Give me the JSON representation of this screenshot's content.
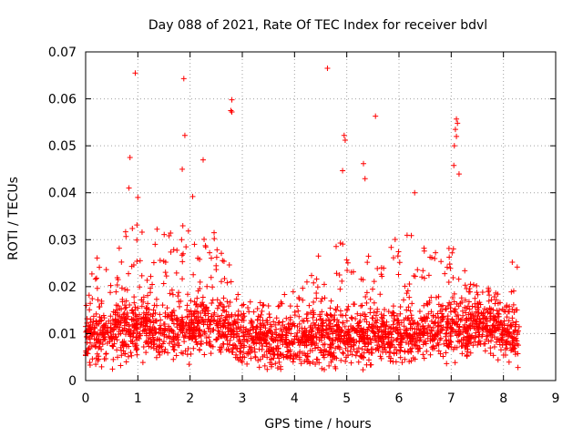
{
  "chart_data": {
    "type": "scatter",
    "title": "Day 088 of 2021, Rate Of TEC Index for receiver bdvl",
    "xlabel": "GPS time / hours",
    "ylabel": "ROTI / TECUs",
    "xlim": [
      0,
      9
    ],
    "ylim": [
      0,
      0.07
    ],
    "grid": true,
    "marker": "plus",
    "color": "#ff0000",
    "x_ticks": [
      0,
      1,
      2,
      3,
      4,
      5,
      6,
      7,
      8,
      9
    ],
    "x_tick_labels": [
      "0",
      "1",
      "2",
      "3",
      "4",
      "5",
      "6",
      "7",
      "8",
      "9"
    ],
    "y_ticks": [
      0,
      0.01,
      0.02,
      0.03,
      0.04,
      0.05,
      0.06,
      0.07
    ],
    "y_tick_labels": [
      "0",
      "0.01",
      "0.02",
      "0.03",
      "0.04",
      "0.05",
      "0.06",
      "0.07"
    ],
    "series": [
      {
        "name": "ROTI",
        "time_range_hours": [
          0,
          8.3
        ],
        "outliers": [
          {
            "x": 0.95,
            "y": 0.0655
          },
          {
            "x": 1.88,
            "y": 0.0643
          },
          {
            "x": 1.9,
            "y": 0.0522
          },
          {
            "x": 2.8,
            "y": 0.0598
          },
          {
            "x": 2.78,
            "y": 0.0575
          },
          {
            "x": 2.8,
            "y": 0.0572
          },
          {
            "x": 4.63,
            "y": 0.0665
          },
          {
            "x": 5.55,
            "y": 0.0563
          },
          {
            "x": 7.1,
            "y": 0.0557
          },
          {
            "x": 7.12,
            "y": 0.0548
          },
          {
            "x": 7.08,
            "y": 0.0535
          },
          {
            "x": 7.1,
            "y": 0.052
          },
          {
            "x": 7.06,
            "y": 0.05
          },
          {
            "x": 4.95,
            "y": 0.0522
          },
          {
            "x": 4.97,
            "y": 0.0512
          },
          {
            "x": 0.85,
            "y": 0.0475
          },
          {
            "x": 2.25,
            "y": 0.047
          },
          {
            "x": 1.85,
            "y": 0.045
          },
          {
            "x": 7.05,
            "y": 0.0458
          },
          {
            "x": 4.92,
            "y": 0.0447
          },
          {
            "x": 5.32,
            "y": 0.0462
          },
          {
            "x": 5.35,
            "y": 0.043
          },
          {
            "x": 7.15,
            "y": 0.044
          },
          {
            "x": 0.83,
            "y": 0.041
          },
          {
            "x": 1.0,
            "y": 0.039
          },
          {
            "x": 2.05,
            "y": 0.0392
          },
          {
            "x": 6.3,
            "y": 0.04
          }
        ],
        "hourly_profile": [
          {
            "x": 0.0,
            "median": 0.009,
            "upper": 0.026
          },
          {
            "x": 0.5,
            "median": 0.01,
            "upper": 0.027
          },
          {
            "x": 1.0,
            "median": 0.011,
            "upper": 0.036
          },
          {
            "x": 1.5,
            "median": 0.01,
            "upper": 0.032
          },
          {
            "x": 2.0,
            "median": 0.011,
            "upper": 0.036
          },
          {
            "x": 2.5,
            "median": 0.012,
            "upper": 0.033
          },
          {
            "x": 3.0,
            "median": 0.009,
            "upper": 0.018
          },
          {
            "x": 3.5,
            "median": 0.0085,
            "upper": 0.016
          },
          {
            "x": 4.0,
            "median": 0.008,
            "upper": 0.02
          },
          {
            "x": 4.5,
            "median": 0.009,
            "upper": 0.028
          },
          {
            "x": 5.0,
            "median": 0.009,
            "upper": 0.03
          },
          {
            "x": 5.5,
            "median": 0.009,
            "upper": 0.026
          },
          {
            "x": 6.0,
            "median": 0.0095,
            "upper": 0.034
          },
          {
            "x": 6.5,
            "median": 0.01,
            "upper": 0.028
          },
          {
            "x": 7.0,
            "median": 0.011,
            "upper": 0.03
          },
          {
            "x": 7.5,
            "median": 0.011,
            "upper": 0.02
          },
          {
            "x": 8.0,
            "median": 0.01,
            "upper": 0.022
          },
          {
            "x": 8.3,
            "median": 0.009,
            "upper": 0.03
          }
        ]
      }
    ]
  }
}
